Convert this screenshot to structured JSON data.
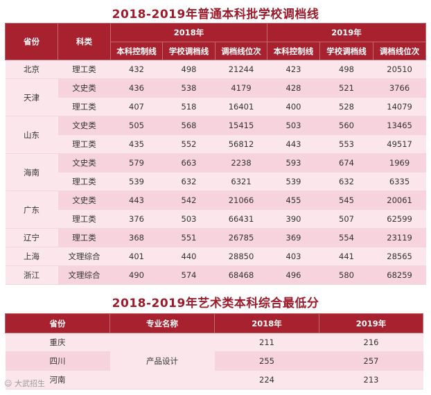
{
  "title1": "2018-2019年普通本科批学校调档线",
  "title2": "2018-2019年艺术类本科综合最低分",
  "table1": {
    "headers": {
      "province": "省份",
      "category": "科类",
      "y2018": "2018年",
      "y2019": "2019年",
      "control_line": "本科控制线",
      "school_line": "学校调档线",
      "rank": "调档线位次"
    },
    "rows": [
      {
        "province": "北京",
        "category": "理工类",
        "c18": "432",
        "s18": "498",
        "r18": "21244",
        "c19": "423",
        "s19": "498",
        "r19": "20510"
      },
      {
        "province": "天津",
        "category": "文史类",
        "c18": "436",
        "s18": "538",
        "r18": "4179",
        "c19": "428",
        "s19": "521",
        "r19": "3766"
      },
      {
        "province": "",
        "category": "理工类",
        "c18": "407",
        "s18": "518",
        "r18": "16401",
        "c19": "400",
        "s19": "528",
        "r19": "14079"
      },
      {
        "province": "山东",
        "category": "文史类",
        "c18": "505",
        "s18": "568",
        "r18": "15415",
        "c19": "503",
        "s19": "560",
        "r19": "13465"
      },
      {
        "province": "",
        "category": "理工类",
        "c18": "435",
        "s18": "552",
        "r18": "56812",
        "c19": "443",
        "s19": "553",
        "r19": "49517"
      },
      {
        "province": "海南",
        "category": "文史类",
        "c18": "579",
        "s18": "663",
        "r18": "2238",
        "c19": "593",
        "s19": "674",
        "r19": "1969"
      },
      {
        "province": "",
        "category": "理工类",
        "c18": "539",
        "s18": "632",
        "r18": "6321",
        "c19": "539",
        "s19": "632",
        "r19": "6335"
      },
      {
        "province": "广东",
        "category": "文史类",
        "c18": "443",
        "s18": "542",
        "r18": "21066",
        "c19": "455",
        "s19": "545",
        "r19": "20061"
      },
      {
        "province": "",
        "category": "理工类",
        "c18": "376",
        "s18": "503",
        "r18": "66431",
        "c19": "390",
        "s19": "507",
        "r19": "62599"
      },
      {
        "province": "辽宁",
        "category": "理工类",
        "c18": "368",
        "s18": "551",
        "r18": "26785",
        "c19": "369",
        "s19": "554",
        "r19": "23119"
      },
      {
        "province": "上海",
        "category": "文理综合",
        "c18": "401",
        "s18": "440",
        "r18": "28850",
        "c19": "403",
        "s19": "441",
        "r19": "28565"
      },
      {
        "province": "浙江",
        "category": "文理综合",
        "c18": "490",
        "s18": "574",
        "r18": "68468",
        "c19": "496",
        "s19": "580",
        "r19": "68259"
      }
    ]
  },
  "table2": {
    "headers": {
      "province": "省份",
      "major": "专业名称",
      "y2018": "2018年",
      "y2019": "2019年"
    },
    "major": "产品设计",
    "rows": [
      {
        "province": "重庆",
        "v18": "211",
        "v19": "216"
      },
      {
        "province": "四川",
        "v18": "255",
        "v19": "257"
      },
      {
        "province": "河南",
        "v18": "224",
        "v19": "213"
      }
    ]
  },
  "watermark": "大武招生",
  "colors": {
    "header_bg": "#a8212f",
    "title": "#9b1b2a",
    "row_light": "#fbe6ec",
    "row_dark": "#f6d3dd"
  }
}
